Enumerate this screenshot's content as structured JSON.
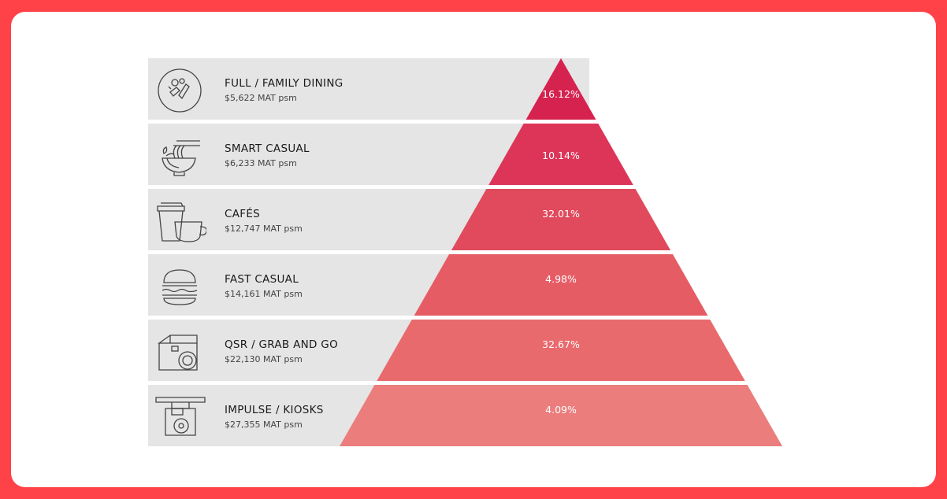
{
  "colors": {
    "background": "#ff4248",
    "card": "#ffffff",
    "row": "#e5e5e6",
    "tiers": [
      "#d6224f",
      "#dd3558",
      "#e04a5c",
      "#e65c65",
      "#e96a6d",
      "#eb7d7c"
    ]
  },
  "tiers": [
    {
      "title": "FULL / FAMILY DINING",
      "subtitle": "$5,622 MAT psm",
      "share": "16.12%",
      "icon": "dining-icon"
    },
    {
      "title": "SMART CASUAL",
      "subtitle": "$6,233 MAT psm",
      "share": "10.14%",
      "icon": "noodle-bowl-icon"
    },
    {
      "title": "CAFÉS",
      "subtitle": "$12,747 MAT psm",
      "share": "32.01%",
      "icon": "coffee-cup-icon"
    },
    {
      "title": "FAST CASUAL",
      "subtitle": "$14,161 MAT psm",
      "share": "4.98%",
      "icon": "burger-icon"
    },
    {
      "title": "QSR / GRAB AND GO",
      "subtitle": "$22,130 MAT psm",
      "share": "32.67%",
      "icon": "takeaway-box-icon"
    },
    {
      "title": "IMPULSE / KIOSKS",
      "subtitle": "$27,355 MAT psm",
      "share": "4.09%",
      "icon": "kiosk-icon"
    }
  ]
}
